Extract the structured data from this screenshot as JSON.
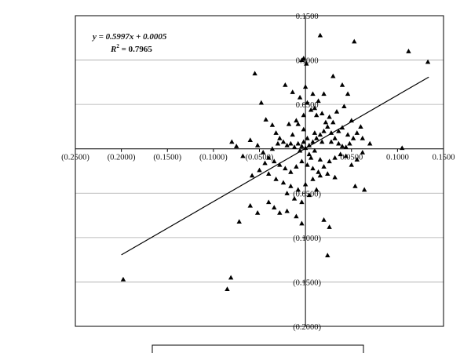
{
  "chart_data": {
    "type": "scatter",
    "title": "",
    "xlabel": "",
    "ylabel": "",
    "xlim": [
      -0.25,
      0.15
    ],
    "ylim": [
      -0.2,
      0.15
    ],
    "x_ticks": [
      -0.25,
      -0.2,
      -0.15,
      -0.1,
      -0.05,
      0.05,
      0.1,
      0.15
    ],
    "x_tick_labels": [
      "(0.2500)",
      "(0.2000)",
      "(0.1500)",
      "(0.1000)",
      "(0.0500)",
      "0.0500",
      "0.1000",
      "0.1500"
    ],
    "y_ticks": [
      0.15,
      0.1,
      0.05,
      -0.05,
      -0.1,
      -0.15,
      -0.2
    ],
    "y_tick_labels": [
      "0.1500",
      "0.1000",
      "0.0500",
      "(0.0500)",
      "(0.1000)",
      "(0.1500)",
      "(0.2000)"
    ],
    "grid": "horizontal",
    "marker": "triangle",
    "trendline": {
      "slope": 0.5997,
      "intercept": 0.0005,
      "x_range": [
        -0.2,
        0.134
      ]
    },
    "equation_text": {
      "y_eq": "y = 0.5997x + 0.0005",
      "r2_prefix": "R",
      "r2_exp": "2",
      "r2_value": " = 0.7965"
    },
    "points": [
      [
        -0.198,
        -0.147
      ],
      [
        -0.085,
        -0.158
      ],
      [
        -0.081,
        -0.145
      ],
      [
        0.016,
        0.128
      ],
      [
        0.053,
        0.121
      ],
      [
        0.112,
        0.11
      ],
      [
        0.133,
        0.098
      ],
      [
        0.105,
        0.001
      ],
      [
        -0.004,
        0.1
      ],
      [
        -0.002,
        0.102
      ],
      [
        0.001,
        0.096
      ],
      [
        -0.055,
        0.085
      ],
      [
        -0.048,
        0.052
      ],
      [
        -0.043,
        0.033
      ],
      [
        -0.036,
        0.027
      ],
      [
        -0.032,
        0.018
      ],
      [
        -0.028,
        0.012
      ],
      [
        -0.024,
        0.008
      ],
      [
        -0.02,
        0.004
      ],
      [
        -0.016,
        0.006
      ],
      [
        -0.012,
        0.002
      ],
      [
        -0.008,
        0.006
      ],
      [
        -0.004,
        0.003
      ],
      [
        0.0,
        0.001
      ],
      [
        0.004,
        0.004
      ],
      [
        0.008,
        0.008
      ],
      [
        0.012,
        0.012
      ],
      [
        0.016,
        0.016
      ],
      [
        0.02,
        0.02
      ],
      [
        0.024,
        0.025
      ],
      [
        0.028,
        0.018
      ],
      [
        0.032,
        0.012
      ],
      [
        0.036,
        0.006
      ],
      [
        0.04,
        0.003
      ],
      [
        0.044,
        0.002
      ],
      [
        0.048,
        0.006
      ],
      [
        0.052,
        0.012
      ],
      [
        0.056,
        0.018
      ],
      [
        0.06,
        0.025
      ],
      [
        -0.022,
        0.072
      ],
      [
        -0.014,
        0.064
      ],
      [
        -0.006,
        0.058
      ],
      [
        0.002,
        0.052
      ],
      [
        0.01,
        0.046
      ],
      [
        0.018,
        0.04
      ],
      [
        0.026,
        0.036
      ],
      [
        0.034,
        0.042
      ],
      [
        0.042,
        0.048
      ],
      [
        0.02,
        0.062
      ],
      [
        0.014,
        0.054
      ],
      [
        0.006,
        0.044
      ],
      [
        -0.002,
        0.038
      ],
      [
        -0.01,
        0.032
      ],
      [
        -0.018,
        0.028
      ],
      [
        0.04,
        0.072
      ],
      [
        0.03,
        0.082
      ],
      [
        0.046,
        0.062
      ],
      [
        0.05,
        0.032
      ],
      [
        0.04,
        0.024
      ],
      [
        0.0,
        0.07
      ],
      [
        0.008,
        0.062
      ],
      [
        0.012,
        0.038
      ],
      [
        0.022,
        0.03
      ],
      [
        -0.08,
        0.008
      ],
      [
        -0.075,
        0.003
      ],
      [
        -0.068,
        -0.008
      ],
      [
        -0.06,
        0.01
      ],
      [
        -0.052,
        0.004
      ],
      [
        -0.046,
        -0.004
      ],
      [
        -0.04,
        -0.01
      ],
      [
        -0.034,
        -0.014
      ],
      [
        -0.028,
        -0.018
      ],
      [
        -0.022,
        -0.022
      ],
      [
        -0.016,
        -0.026
      ],
      [
        -0.01,
        -0.02
      ],
      [
        -0.004,
        -0.014
      ],
      [
        0.002,
        -0.018
      ],
      [
        0.008,
        -0.022
      ],
      [
        0.014,
        -0.026
      ],
      [
        0.02,
        -0.02
      ],
      [
        0.026,
        -0.014
      ],
      [
        0.032,
        -0.01
      ],
      [
        0.038,
        -0.006
      ],
      [
        0.044,
        -0.008
      ],
      [
        0.05,
        -0.018
      ],
      [
        0.056,
        -0.012
      ],
      [
        0.062,
        -0.004
      ],
      [
        -0.04,
        -0.028
      ],
      [
        -0.032,
        -0.034
      ],
      [
        -0.024,
        -0.038
      ],
      [
        -0.016,
        -0.042
      ],
      [
        -0.008,
        -0.046
      ],
      [
        0.0,
        -0.04
      ],
      [
        0.008,
        -0.034
      ],
      [
        0.016,
        -0.03
      ],
      [
        0.024,
        -0.028
      ],
      [
        0.032,
        -0.032
      ],
      [
        -0.02,
        -0.05
      ],
      [
        -0.012,
        -0.056
      ],
      [
        -0.004,
        -0.06
      ],
      [
        0.004,
        -0.052
      ],
      [
        0.012,
        -0.046
      ],
      [
        -0.04,
        -0.06
      ],
      [
        -0.034,
        -0.066
      ],
      [
        -0.028,
        -0.072
      ],
      [
        -0.02,
        -0.07
      ],
      [
        -0.01,
        -0.076
      ],
      [
        -0.004,
        -0.084
      ],
      [
        0.02,
        -0.08
      ],
      [
        0.026,
        -0.088
      ],
      [
        -0.052,
        -0.072
      ],
      [
        -0.06,
        -0.064
      ],
      [
        -0.072,
        -0.082
      ],
      [
        0.024,
        -0.12
      ],
      [
        0.054,
        -0.042
      ],
      [
        0.064,
        -0.046
      ],
      [
        0.07,
        0.006
      ],
      [
        0.062,
        0.012
      ],
      [
        0.046,
        0.016
      ],
      [
        0.036,
        0.02
      ],
      [
        0.03,
        0.03
      ],
      [
        0.018,
        0.008
      ],
      [
        0.01,
        0.018
      ],
      [
        -0.002,
        0.022
      ],
      [
        -0.008,
        0.028
      ],
      [
        -0.014,
        0.016
      ],
      [
        -0.03,
        0.006
      ],
      [
        -0.036,
        0.0
      ],
      [
        -0.044,
        -0.016
      ],
      [
        -0.05,
        -0.024
      ],
      [
        -0.058,
        -0.03
      ],
      [
        0.004,
        -0.006
      ],
      [
        0.01,
        -0.002
      ],
      [
        -0.006,
        -0.002
      ],
      [
        0.002,
        0.012
      ],
      [
        -0.002,
        0.008
      ],
      [
        0.006,
        -0.01
      ],
      [
        0.016,
        -0.012
      ],
      [
        0.028,
        0.008
      ]
    ]
  }
}
